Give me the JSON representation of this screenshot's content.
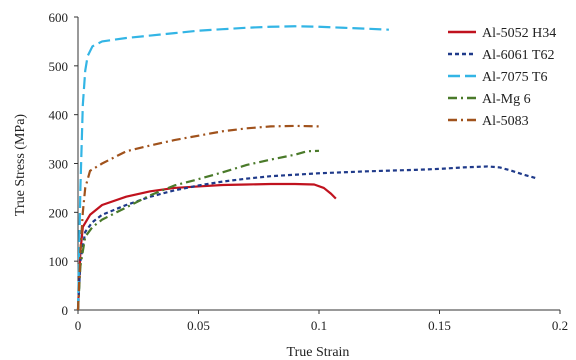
{
  "chart_data": {
    "type": "line",
    "title": "",
    "xlabel": "True Strain",
    "ylabel": "True Stress (MPa)",
    "xlim": [
      0,
      0.2
    ],
    "ylim": [
      0,
      600
    ],
    "xticks": [
      0,
      0.05,
      0.1,
      0.15,
      0.2
    ],
    "xtick_labels": [
      "0",
      "0.05",
      "0.1",
      "0.15",
      "0.2"
    ],
    "yticks": [
      0,
      100,
      200,
      300,
      400,
      500,
      600
    ],
    "ytick_labels": [
      "0",
      "100",
      "200",
      "300",
      "400",
      "500",
      "600"
    ],
    "grid": false,
    "legend_position": "top-right",
    "series": [
      {
        "name": "Al-5052 H34",
        "color": "#c0121e",
        "dash": "solid",
        "points": [
          [
            0,
            0
          ],
          [
            0.001,
            120
          ],
          [
            0.002,
            170
          ],
          [
            0.005,
            195
          ],
          [
            0.01,
            215
          ],
          [
            0.02,
            232
          ],
          [
            0.03,
            243
          ],
          [
            0.04,
            250
          ],
          [
            0.05,
            253
          ],
          [
            0.06,
            256
          ],
          [
            0.07,
            257
          ],
          [
            0.08,
            258
          ],
          [
            0.09,
            258
          ],
          [
            0.098,
            257
          ],
          [
            0.102,
            250
          ],
          [
            0.105,
            238
          ],
          [
            0.107,
            228
          ]
        ]
      },
      {
        "name": "Al-6061 T62",
        "color": "#1f3a8a",
        "dash": "dashed",
        "points": [
          [
            0,
            0
          ],
          [
            0.001,
            100
          ],
          [
            0.003,
            160
          ],
          [
            0.006,
            180
          ],
          [
            0.01,
            195
          ],
          [
            0.02,
            215
          ],
          [
            0.03,
            232
          ],
          [
            0.04,
            245
          ],
          [
            0.05,
            255
          ],
          [
            0.06,
            263
          ],
          [
            0.07,
            269
          ],
          [
            0.08,
            274
          ],
          [
            0.09,
            277
          ],
          [
            0.1,
            280
          ],
          [
            0.12,
            284
          ],
          [
            0.14,
            287
          ],
          [
            0.15,
            289
          ],
          [
            0.16,
            292
          ],
          [
            0.17,
            294
          ],
          [
            0.175,
            292
          ],
          [
            0.18,
            285
          ],
          [
            0.185,
            277
          ],
          [
            0.19,
            270
          ]
        ]
      },
      {
        "name": "Al-7075 T6",
        "color": "#33b5e5",
        "dash": "longdash",
        "points": [
          [
            0,
            0
          ],
          [
            0.001,
            250
          ],
          [
            0.002,
            420
          ],
          [
            0.003,
            490
          ],
          [
            0.004,
            520
          ],
          [
            0.006,
            540
          ],
          [
            0.01,
            550
          ],
          [
            0.02,
            557
          ],
          [
            0.03,
            562
          ],
          [
            0.04,
            567
          ],
          [
            0.05,
            572
          ],
          [
            0.06,
            575
          ],
          [
            0.07,
            578
          ],
          [
            0.08,
            580
          ],
          [
            0.09,
            581
          ],
          [
            0.1,
            580
          ],
          [
            0.11,
            578
          ],
          [
            0.12,
            576
          ],
          [
            0.129,
            574
          ]
        ]
      },
      {
        "name": "Al-Mg 6",
        "color": "#4a7a2a",
        "dash": "dashdot",
        "points": [
          [
            0,
            0
          ],
          [
            0.001,
            90
          ],
          [
            0.003,
            150
          ],
          [
            0.006,
            170
          ],
          [
            0.01,
            185
          ],
          [
            0.02,
            210
          ],
          [
            0.03,
            235
          ],
          [
            0.04,
            255
          ],
          [
            0.05,
            268
          ],
          [
            0.06,
            282
          ],
          [
            0.07,
            297
          ],
          [
            0.08,
            308
          ],
          [
            0.09,
            318
          ],
          [
            0.095,
            325
          ],
          [
            0.1,
            326
          ]
        ]
      },
      {
        "name": "Al-5083",
        "color": "#a0521c",
        "dash": "dashdot",
        "points": [
          [
            0,
            0
          ],
          [
            0.001,
            120
          ],
          [
            0.002,
            200
          ],
          [
            0.003,
            250
          ],
          [
            0.005,
            285
          ],
          [
            0.01,
            300
          ],
          [
            0.02,
            325
          ],
          [
            0.03,
            337
          ],
          [
            0.04,
            348
          ],
          [
            0.05,
            357
          ],
          [
            0.06,
            366
          ],
          [
            0.07,
            372
          ],
          [
            0.08,
            376
          ],
          [
            0.09,
            377
          ],
          [
            0.1,
            376
          ]
        ]
      }
    ]
  }
}
